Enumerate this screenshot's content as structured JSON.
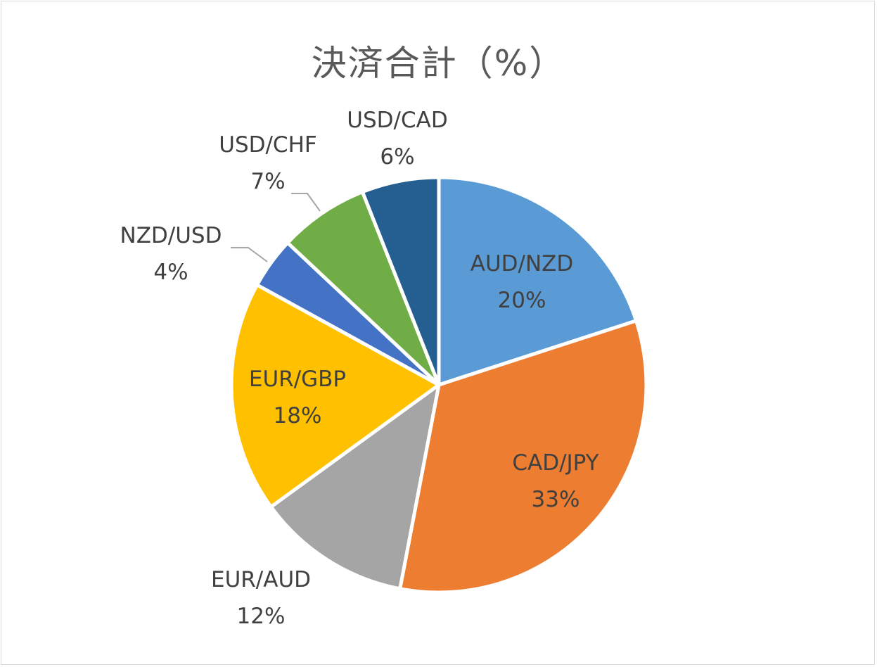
{
  "chart_data": {
    "type": "pie",
    "title": "決済合計（%）",
    "categories": [
      "AUD/NZD",
      "CAD/JPY",
      "EUR/AUD",
      "EUR/GBP",
      "NZD/USD",
      "USD/CHF",
      "USD/CAD"
    ],
    "values": [
      20,
      33,
      12,
      18,
      4,
      7,
      6
    ],
    "value_labels": [
      "20%",
      "33%",
      "12%",
      "18%",
      "4%",
      "7%",
      "6%"
    ],
    "colors": [
      "#5b9bd5",
      "#ed7d31",
      "#a5a5a5",
      "#ffc000",
      "#4472c4",
      "#70ad47",
      "#255e91"
    ],
    "legend": "none",
    "start_angle_deg": 0,
    "direction": "clockwise"
  }
}
